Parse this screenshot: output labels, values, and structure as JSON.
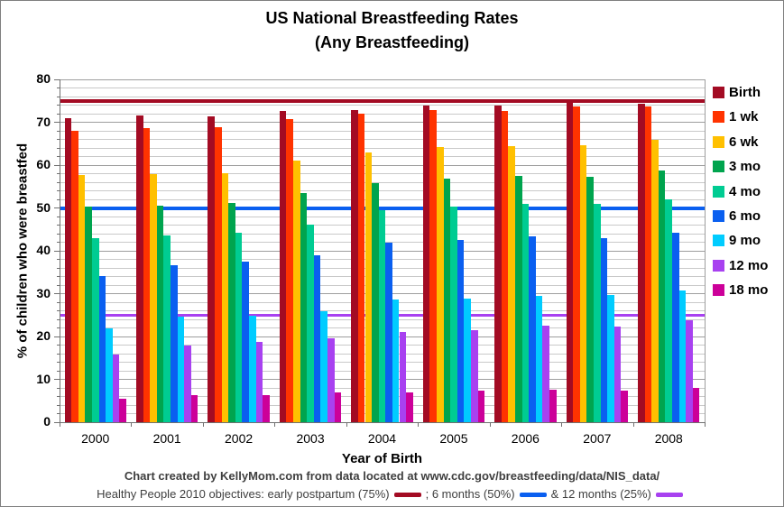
{
  "title": {
    "line1": "US National Breastfeeding Rates",
    "line2": "(Any Breastfeeding)"
  },
  "y_axis": {
    "label": "% of children who were breastfed",
    "tick_labels": [
      "0",
      "10",
      "20",
      "30",
      "40",
      "50",
      "60",
      "70",
      "80"
    ]
  },
  "x_axis": {
    "label": "Year of Birth"
  },
  "footer": {
    "credit": "Chart created by KellyMom.com from data located at www.cdc.gov/breastfeeding/data/NIS_data/",
    "objectives_segments": [
      {
        "text": "Healthy People 2010 objectives: early postpartum (75%)",
        "dash_color": "#A30B23"
      },
      {
        "text": ";  6 months (50%)",
        "dash_color": "#0A5FF0"
      },
      {
        "text": "& 12 months (25%)",
        "dash_color": "#A841F0"
      }
    ]
  },
  "chart_data": {
    "type": "bar",
    "title": "US National Breastfeeding Rates (Any Breastfeeding)",
    "categories": [
      "2000",
      "2001",
      "2002",
      "2003",
      "2004",
      "2005",
      "2006",
      "2007",
      "2008"
    ],
    "series": [
      {
        "name": "Birth",
        "color": "#A30B23",
        "values": [
          70.9,
          71.5,
          71.4,
          72.6,
          72.9,
          74.0,
          74.0,
          74.9,
          74.4
        ]
      },
      {
        "name": "1 wk",
        "color": "#FF3300",
        "values": [
          68.1,
          68.7,
          68.8,
          70.8,
          71.9,
          72.8,
          72.6,
          73.6,
          73.6
        ]
      },
      {
        "name": "6 wk",
        "color": "#FFC000",
        "values": [
          57.6,
          57.8,
          58.2,
          61.1,
          63.0,
          64.2,
          64.5,
          64.7,
          65.9
        ]
      },
      {
        "name": "3 mo",
        "color": "#00A44E",
        "values": [
          50.4,
          50.6,
          51.2,
          53.4,
          55.8,
          56.9,
          57.4,
          57.2,
          58.8
        ]
      },
      {
        "name": "4 mo",
        "color": "#00CC92",
        "values": [
          42.9,
          43.5,
          44.2,
          46.2,
          49.5,
          50.3,
          51.0,
          50.9,
          51.9
        ]
      },
      {
        "name": "6 mo",
        "color": "#0A5FF0",
        "values": [
          34.2,
          36.6,
          37.5,
          38.9,
          41.9,
          42.6,
          43.3,
          42.9,
          44.2
        ]
      },
      {
        "name": "9 mo",
        "color": "#00CCFF",
        "values": [
          21.8,
          24.6,
          24.8,
          26.0,
          28.6,
          28.8,
          29.5,
          29.7,
          30.7
        ]
      },
      {
        "name": "12 mo",
        "color": "#A841F0",
        "values": [
          15.7,
          18.0,
          18.8,
          19.6,
          21.1,
          21.5,
          22.5,
          22.3,
          23.8
        ]
      },
      {
        "name": "18 mo",
        "color": "#CC0099",
        "values": [
          5.4,
          6.3,
          6.3,
          6.9,
          6.9,
          7.4,
          7.5,
          7.3,
          8.1
        ]
      }
    ],
    "xlabel": "Year of Birth",
    "ylabel": "% of children who were breastfed",
    "ylim": [
      0,
      80
    ],
    "y_major_step": 10,
    "y_minor_step": 2,
    "grid": true,
    "legend_position": "right",
    "reference_lines": [
      {
        "name": "early postpartum objective",
        "value": 75,
        "color": "#A30B23",
        "thickness": 4
      },
      {
        "name": "6 months objective",
        "value": 50,
        "color": "#0A5FF0",
        "thickness": 4
      },
      {
        "name": "12 months objective",
        "value": 25,
        "color": "#A841F0",
        "thickness": 3
      }
    ]
  },
  "colors": {
    "gridline_minor": "#C9C9C9",
    "gridline_major": "#9E9E9E",
    "axis_line": "#707070",
    "footer_text": "#3F3F3F"
  }
}
